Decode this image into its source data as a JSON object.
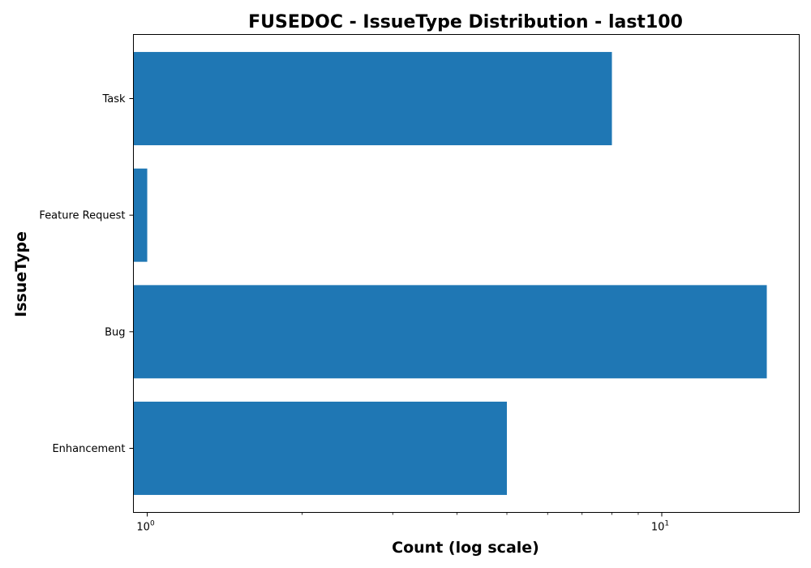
{
  "chart_data": {
    "type": "bar",
    "orientation": "horizontal",
    "title": "FUSEDOC - IssueType Distribution - last100",
    "xlabel": "Count (log scale)",
    "ylabel": "IssueType",
    "xscale": "log",
    "categories": [
      "Enhancement",
      "Bug",
      "Feature Request",
      "Task"
    ],
    "values": [
      5,
      16,
      1,
      8
    ],
    "xlim": [
      0.94,
      18.5
    ],
    "x_ticks": [
      {
        "value": 1,
        "base": "10",
        "exp": "0"
      },
      {
        "value": 10,
        "base": "10",
        "exp": "1"
      }
    ],
    "grid": false,
    "bar_color": "#1f77b4"
  }
}
